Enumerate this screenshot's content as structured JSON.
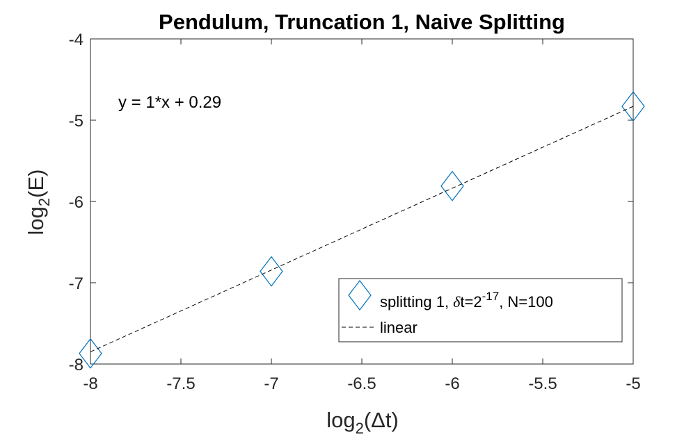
{
  "chart_data": {
    "type": "line",
    "title": "Pendulum, Truncation 1, Naive Splitting",
    "xlabel": {
      "pre": "log",
      "sub": "2",
      "post": "(Δt)"
    },
    "ylabel": {
      "pre": "log",
      "sub": "2",
      "post": "(E)"
    },
    "xlim": [
      -8,
      -5
    ],
    "ylim": [
      -8,
      -4
    ],
    "xticks": [
      "-8",
      "-7.5",
      "-7",
      "-6.5",
      "-6",
      "-5.5",
      "-5"
    ],
    "yticks": [
      "-8",
      "-7",
      "-6",
      "-5",
      "-4"
    ],
    "grid": false,
    "series": [
      {
        "name": "splitting 1, δt=2^-17, N=100",
        "marker": "diamond",
        "line": "none",
        "color": "#0072BD",
        "x": [
          -8,
          -7,
          -6,
          -5
        ],
        "y": [
          -7.87,
          -6.86,
          -5.81,
          -4.83
        ]
      },
      {
        "name": "linear",
        "marker": "none",
        "line": "dashed",
        "color": "#000000",
        "x": [
          -8,
          -5
        ],
        "y": [
          -7.85,
          -4.83
        ]
      }
    ],
    "annotation": "y = 1*x + 0.29",
    "legend": {
      "location": "bottom-right",
      "entry1": {
        "pre": "splitting 1, ",
        "delta": "δ",
        "mid": "t=2",
        "sup": "-17",
        "post": ", N=100"
      },
      "entry2": "linear"
    }
  }
}
